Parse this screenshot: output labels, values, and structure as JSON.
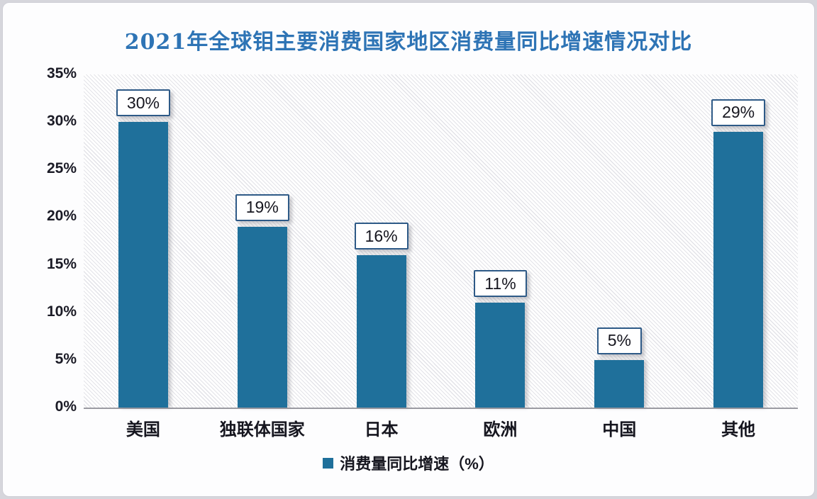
{
  "page": {
    "title": "2021年全球钼主要消费国家地区消费量同比增速情况对比"
  },
  "chart_data": {
    "type": "bar",
    "title": "2021年全球钼主要消费国家地区消费量同比增速情况对比",
    "categories": [
      "美国",
      "独联体国家",
      "日本",
      "欧洲",
      "中国",
      "其他"
    ],
    "series": [
      {
        "name": "消费量同比增速（%）",
        "values": [
          30,
          19,
          16,
          11,
          5,
          29
        ]
      }
    ],
    "data_labels": [
      "30%",
      "19%",
      "16%",
      "11%",
      "5%",
      "29%"
    ],
    "ylim": [
      0,
      35
    ],
    "ytick_step": 5,
    "ytick_labels": [
      "0%",
      "5%",
      "10%",
      "15%",
      "20%",
      "25%",
      "30%",
      "35%"
    ],
    "grid": false,
    "legend": {
      "position": "bottom",
      "label": "消费量同比增速（%）"
    },
    "colors": {
      "bar": "#1F709B",
      "label_box_border": "#2E5A87",
      "title": "#2E74B5",
      "axis_line": "#9b9ba2",
      "tick_text": "#1b1b26"
    }
  }
}
